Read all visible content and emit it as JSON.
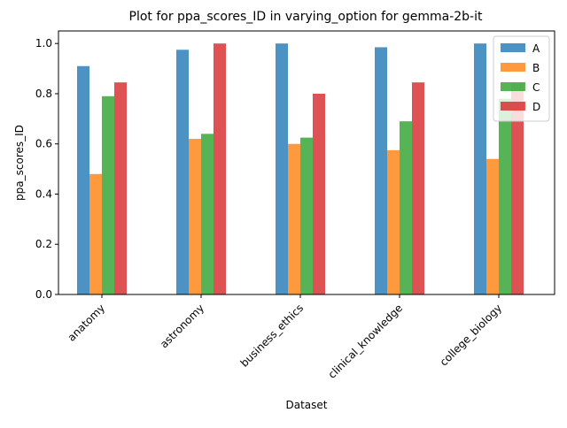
{
  "chart_data": {
    "type": "bar",
    "title": "Plot for ppa_scores_ID in varying_option for gemma-2b-it",
    "xlabel": "Dataset",
    "ylabel": "ppa_scores_ID",
    "categories": [
      "anatomy",
      "astronomy",
      "business_ethics",
      "clinical_knowledge",
      "college_biology"
    ],
    "ylim": [
      0,
      1.05
    ],
    "yticks": [
      "0.0",
      "0.2",
      "0.4",
      "0.6",
      "0.8",
      "1.0"
    ],
    "legend_position": "top-right",
    "grid": false,
    "series": [
      {
        "name": "A",
        "color": "#1f77b4",
        "values": [
          0.91,
          0.975,
          1.0,
          0.985,
          1.0
        ]
      },
      {
        "name": "B",
        "color": "#ff7f0e",
        "values": [
          0.48,
          0.62,
          0.6,
          0.575,
          0.54
        ]
      },
      {
        "name": "C",
        "color": "#2ca02c",
        "values": [
          0.79,
          0.64,
          0.625,
          0.69,
          0.78
        ]
      },
      {
        "name": "D",
        "color": "#d62728",
        "values": [
          0.845,
          1.0,
          0.8,
          0.845,
          0.84
        ]
      }
    ]
  }
}
